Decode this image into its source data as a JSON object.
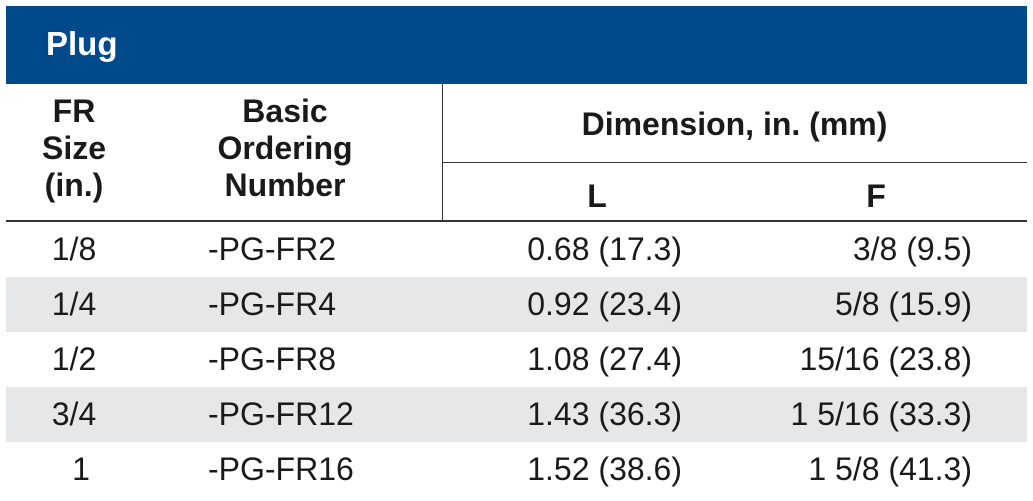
{
  "title": "Plug",
  "headers": {
    "size": [
      "FR",
      "Size",
      "(in.)"
    ],
    "order": [
      "Basic",
      "Ordering",
      "Number"
    ],
    "dimension": "Dimension, in. (mm)",
    "l": "L",
    "f": "F"
  },
  "rows": [
    {
      "size": "1/8",
      "order": "-PG-FR2",
      "l": "0.68 (17.3)",
      "f": "3/8 (9.5)"
    },
    {
      "size": "1/4",
      "order": "-PG-FR4",
      "l": "0.92 (23.4)",
      "f": "5/8 (15.9)"
    },
    {
      "size": "1/2",
      "order": "-PG-FR8",
      "l": "1.08 (27.4)",
      "f": "15/16 (23.8)"
    },
    {
      "size": "3/4",
      "order": "-PG-FR12",
      "l": "1.43 (36.3)",
      "f": "1 5/16 (33.3)"
    },
    {
      "size": "1",
      "order": "-PG-FR16",
      "l": "1.52 (38.6)",
      "f": "1 5/8 (41.3)"
    }
  ],
  "colors": {
    "title_bar": "#004a8c",
    "row_shade": "#e6e7e8"
  }
}
